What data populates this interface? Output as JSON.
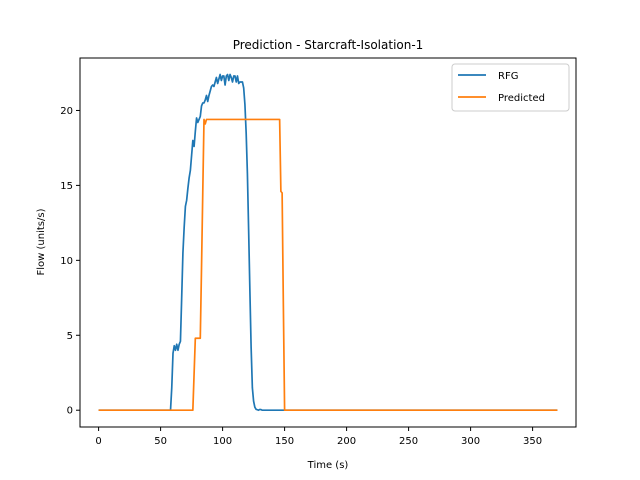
{
  "chart_data": {
    "type": "line",
    "title": "Prediction - Starcraft-Isolation-1",
    "xlabel": "Time (s)",
    "ylabel": "Flow (units/s)",
    "xlim": [
      -15,
      385
    ],
    "ylim": [
      -1.12,
      23.5
    ],
    "xticks": [
      0,
      50,
      100,
      150,
      200,
      250,
      300,
      350
    ],
    "yticks": [
      0,
      5,
      10,
      15,
      20
    ],
    "grid": false,
    "legend_position": "upper right",
    "series": [
      {
        "name": "RFG",
        "color": "#1f77b4",
        "x": [
          0,
          58,
          59,
          60,
          61,
          62,
          63,
          64,
          65,
          66,
          67,
          68,
          69,
          70,
          71,
          72,
          73,
          74,
          75,
          76,
          77,
          78,
          79,
          80,
          81,
          82,
          83,
          84,
          85,
          86,
          87,
          88,
          89,
          90,
          91,
          92,
          93,
          94,
          95,
          96,
          97,
          98,
          99,
          100,
          101,
          102,
          103,
          104,
          105,
          106,
          107,
          108,
          109,
          110,
          111,
          112,
          113,
          114,
          115,
          116,
          117,
          118,
          119,
          120,
          121,
          122,
          123,
          124,
          125,
          126,
          127,
          128,
          129,
          130,
          131,
          132,
          133,
          134,
          135,
          136,
          137,
          138,
          139,
          140,
          141,
          142,
          143,
          144,
          370
        ],
        "y": [
          0,
          0,
          1.5,
          3.8,
          4.3,
          4.0,
          4.4,
          4.0,
          4.4,
          4.6,
          7.5,
          10.5,
          12.2,
          13.6,
          14.0,
          14.8,
          15.5,
          16.0,
          17.0,
          18.0,
          17.6,
          18.6,
          19.5,
          19.2,
          19.4,
          19.6,
          20.3,
          20.5,
          20.5,
          20.7,
          21.0,
          20.6,
          21.0,
          21.3,
          21.6,
          21.7,
          21.6,
          21.9,
          22.2,
          21.8,
          22.1,
          22.4,
          22.0,
          22.3,
          22.3,
          21.7,
          22.3,
          22.4,
          22.0,
          22.4,
          22.2,
          21.9,
          22.3,
          22.3,
          21.9,
          22.3,
          21.8,
          21.9,
          21.9,
          21.9,
          21.5,
          20.4,
          18.5,
          15.8,
          12.0,
          8.0,
          4.2,
          1.5,
          0.6,
          0.2,
          0.06,
          0.03,
          0,
          0.05,
          0.04,
          0,
          0,
          0,
          0,
          0,
          0,
          0,
          0,
          0,
          0,
          0,
          0,
          0,
          0
        ]
      },
      {
        "name": "Predicted",
        "color": "#ff7f0e",
        "x": [
          0,
          76,
          77,
          78,
          79,
          80,
          81,
          82,
          83,
          84,
          85,
          86,
          87,
          88,
          89,
          90,
          91,
          146,
          147,
          148,
          149,
          150,
          151,
          370
        ],
        "y": [
          0,
          0,
          2.4,
          4.8,
          4.8,
          4.8,
          4.8,
          4.8,
          9.5,
          14.5,
          19.4,
          19.1,
          19.4,
          19.4,
          19.4,
          19.4,
          19.4,
          19.4,
          14.6,
          14.5,
          7.0,
          0,
          0,
          0
        ]
      }
    ]
  }
}
